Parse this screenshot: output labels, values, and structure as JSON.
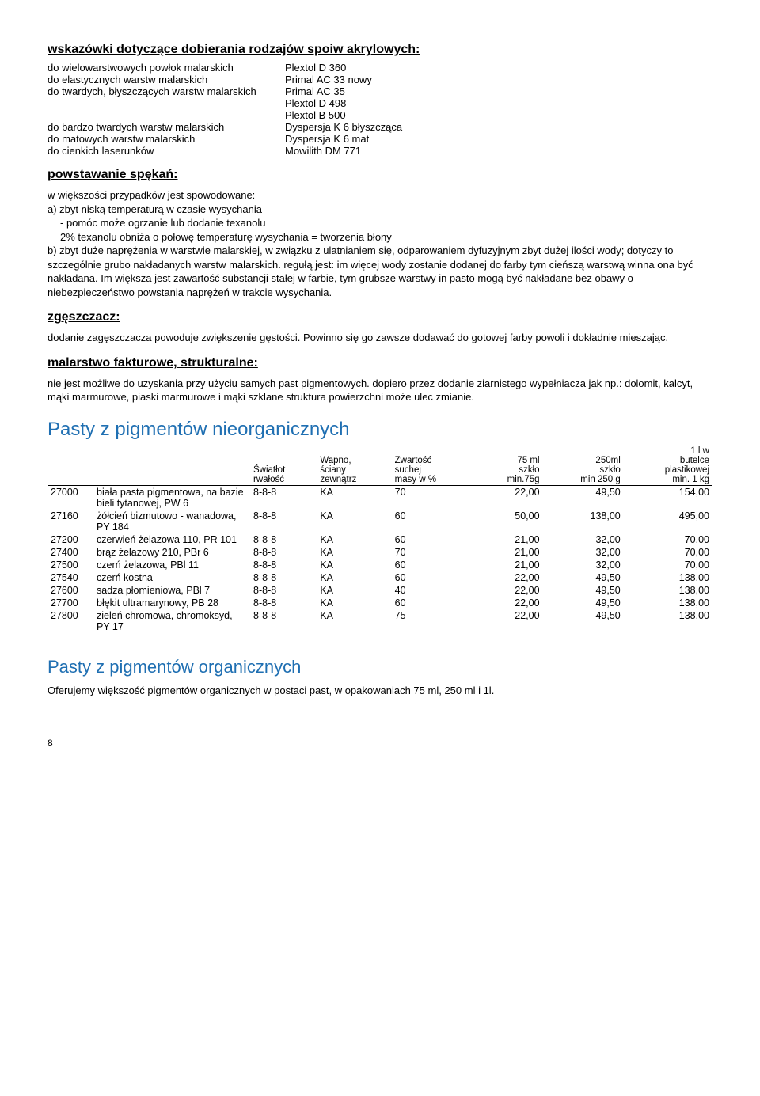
{
  "section1": {
    "title": "wskazówki dotyczące dobierania rodzajów spoiw akrylowych:",
    "rows": [
      {
        "l": "do wielowarstwowych powłok malarskich",
        "r": "Plextol D 360"
      },
      {
        "l": "do elastycznych warstw malarskich",
        "r": "Primal AC 33 nowy"
      },
      {
        "l": "do twardych, błyszczących warstw malarskich",
        "r": "Primal AC 35"
      },
      {
        "l": "",
        "r": "Plextol D 498"
      },
      {
        "l": "",
        "r": "Plextol B 500"
      },
      {
        "l": "do bardzo twardych warstw malarskich",
        "r": "Dyspersja K 6 błyszcząca"
      },
      {
        "l": "do matowych warstw malarskich",
        "r": "Dyspersja K 6 mat"
      },
      {
        "l": "do cienkich laserunków",
        "r": "Mowilith DM 771"
      }
    ]
  },
  "section2": {
    "title": "powstawanie spękań:",
    "intro": "w większości przypadków jest spowodowane:",
    "a": "a) zbyt niską temperaturą w czasie wysychania",
    "a_sub1": "- pomóc może ogrzanie lub dodanie texanolu",
    "a_sub2": "2% texanolu obniża o połowę temperaturę wysychania = tworzenia błony",
    "b": "b) zbyt duże naprężenia w warstwie malarskiej, w związku z ulatnianiem się, odparowaniem dyfuzyjnym  zbyt dużej ilości wody; dotyczy to szczególnie grubo nakładanych warstw malarskich. regułą jest: im więcej wody zostanie dodanej do farby tym cieńszą warstwą winna ona być nakładana. Im większa jest zawartość substancji stałej w farbie, tym grubsze warstwy in pasto mogą być nakładane bez obawy o niebezpieczeństwo powstania naprężeń w trakcie wysychania."
  },
  "section3": {
    "title": "zgęszczacz:",
    "text": "dodanie zagęszczacza powoduje zwiększenie gęstości. Powinno się go zawsze dodawać do gotowej farby powoli i dokładnie mieszając."
  },
  "section4": {
    "title": "malarstwo fakturowe, strukturalne:",
    "text": "nie jest możliwe do uzyskania przy użyciu samych past pigmentowych. dopiero przez dodanie ziarnistego wypełniacza jak np.: dolomit, kalcyt, mąki marmurowe, piaski marmurowe i mąki szklane struktura powierzchni może ulec zmianie."
  },
  "table1": {
    "title": "Pasty z pigmentów nieorganicznych",
    "headers": {
      "code": "",
      "name": "",
      "c1": "Światłot\nrwałość",
      "c2": "Wapno,\nściany\nzewnątrz",
      "c3": "Zwartość\nsuchej\nmasy w %",
      "c4": "75 ml\nszkło\nmin.75g",
      "c5": "250ml\nszkło\nmin 250 g",
      "c6": "1 l w\nbutelce\nplastikowej\nmin. 1 kg"
    },
    "rows": [
      {
        "code": "27000",
        "name": "biała pasta pigmentowa, na bazie bieli tytanowej, PW 6",
        "c1": "8-8-8",
        "c2": "KA",
        "c3": "70",
        "c4": "22,00",
        "c5": "49,50",
        "c6": "154,00"
      },
      {
        "code": "27160",
        "name": "żółcień bizmutowo - wanadowa, PY 184",
        "c1": "8-8-8",
        "c2": "KA",
        "c3": "60",
        "c4": "50,00",
        "c5": "138,00",
        "c6": "495,00"
      },
      {
        "code": "27200",
        "name": "czerwień żelazowa 110, PR 101",
        "c1": "8-8-8",
        "c2": "KA",
        "c3": "60",
        "c4": "21,00",
        "c5": "32,00",
        "c6": "70,00"
      },
      {
        "code": "27400",
        "name": "brąz żelazowy 210, PBr 6",
        "c1": "8-8-8",
        "c2": "KA",
        "c3": "70",
        "c4": "21,00",
        "c5": "32,00",
        "c6": "70,00"
      },
      {
        "code": "27500",
        "name": "czerń żelazowa, PBl 11",
        "c1": "8-8-8",
        "c2": "KA",
        "c3": "60",
        "c4": "21,00",
        "c5": "32,00",
        "c6": "70,00"
      },
      {
        "code": "27540",
        "name": "czerń kostna",
        "c1": "8-8-8",
        "c2": "KA",
        "c3": "60",
        "c4": "22,00",
        "c5": "49,50",
        "c6": "138,00"
      },
      {
        "code": "27600",
        "name": "sadza płomieniowa, PBl 7",
        "c1": "8-8-8",
        "c2": "KA",
        "c3": "40",
        "c4": "22,00",
        "c5": "49,50",
        "c6": "138,00"
      },
      {
        "code": "27700",
        "name": "błękit ultramarynowy, PB 28",
        "c1": "8-8-8",
        "c2": "KA",
        "c3": "60",
        "c4": "22,00",
        "c5": "49,50",
        "c6": "138,00"
      },
      {
        "code": "27800",
        "name": "zieleń chromowa, chromoksyd, PY 17",
        "c1": "8-8-8",
        "c2": "KA",
        "c3": "75",
        "c4": "22,00",
        "c5": "49,50",
        "c6": "138,00"
      }
    ]
  },
  "table2": {
    "title": "Pasty z pigmentów organicznych",
    "text": "Oferujemy większość pigmentów organicznych w postaci past, w opakowaniach 75 ml, 250 ml i 1l."
  },
  "page": "8"
}
